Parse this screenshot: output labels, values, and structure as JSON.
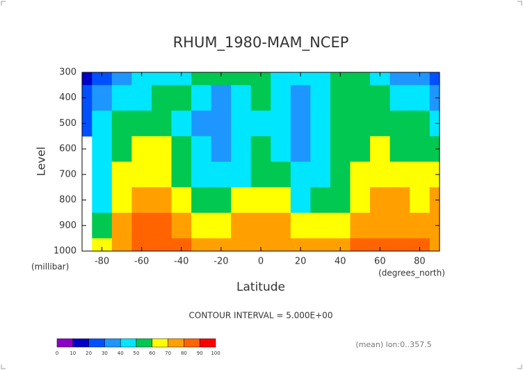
{
  "chart_data": {
    "type": "contour",
    "title": "RHUM_1980-MAM_NCEP",
    "y_label": "Level",
    "y_unit": "(millibar)",
    "x_label": "Latitude",
    "x_unit": "(degrees_north)",
    "note": "CONTOUR INTERVAL = 5.000E+00",
    "footer": "(mean) lon:0..357.5",
    "x": [
      -90,
      -80,
      -70,
      -60,
      -50,
      -40,
      -30,
      -20,
      -10,
      0,
      10,
      20,
      30,
      40,
      50,
      60,
      70,
      80,
      90
    ],
    "y": [
      300,
      400,
      500,
      600,
      700,
      800,
      900,
      1000
    ],
    "z": [
      [
        10,
        20,
        30,
        40,
        45,
        48,
        52,
        50,
        52,
        50,
        45,
        48,
        45,
        50,
        52,
        45,
        38,
        32,
        28
      ],
      [
        25,
        30,
        40,
        48,
        55,
        52,
        42,
        38,
        45,
        50,
        42,
        34,
        42,
        50,
        55,
        52,
        48,
        42,
        38
      ],
      [
        25,
        45,
        52,
        56,
        56,
        48,
        38,
        33,
        42,
        48,
        40,
        33,
        40,
        52,
        58,
        58,
        55,
        52,
        48
      ],
      [
        null,
        45,
        55,
        62,
        62,
        52,
        40,
        34,
        42,
        50,
        42,
        36,
        40,
        52,
        58,
        60,
        58,
        56,
        58
      ],
      [
        null,
        45,
        60,
        68,
        66,
        58,
        45,
        40,
        48,
        58,
        55,
        40,
        45,
        55,
        62,
        68,
        65,
        60,
        62
      ],
      [
        null,
        48,
        62,
        75,
        72,
        66,
        55,
        50,
        60,
        68,
        65,
        48,
        50,
        58,
        65,
        70,
        70,
        68,
        70
      ],
      [
        null,
        50,
        72,
        82,
        80,
        75,
        68,
        65,
        70,
        75,
        72,
        62,
        62,
        68,
        72,
        75,
        75,
        72,
        75
      ],
      [
        null,
        60,
        78,
        88,
        85,
        80,
        75,
        72,
        75,
        78,
        75,
        72,
        72,
        75,
        80,
        85,
        82,
        80,
        78
      ]
    ],
    "xlim": [
      -90,
      90
    ],
    "xticks": [
      -80,
      -60,
      -40,
      -20,
      0,
      20,
      40,
      60,
      80
    ],
    "ylim": [
      1000,
      300
    ],
    "yticks": [
      300,
      400,
      500,
      600,
      700,
      800,
      900,
      1000
    ],
    "colorbar": {
      "levels": [
        0,
        10,
        20,
        30,
        40,
        50,
        60,
        70,
        80,
        90,
        100
      ],
      "colors": [
        "#8c00c8",
        "#0000c8",
        "#0050ff",
        "#1e96ff",
        "#00e6ff",
        "#00c850",
        "#ffff00",
        "#ffa000",
        "#ff6400",
        "#ff0000"
      ]
    }
  }
}
